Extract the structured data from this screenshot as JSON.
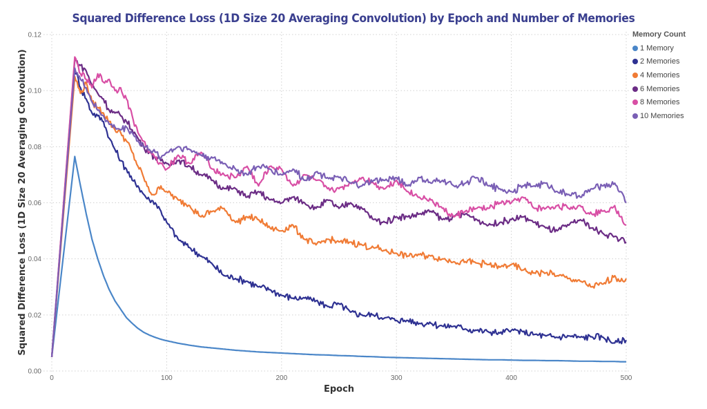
{
  "chart_data": {
    "type": "line",
    "title": "Squared Difference Loss (1D Size 20 Averaging Convolution) by Epoch and Number of Memories",
    "xlabel": "Epoch",
    "ylabel": "Squared Difference Loss (1D Size 20 Averaging Convolution)",
    "xlim": [
      0,
      500
    ],
    "ylim": [
      0,
      0.12
    ],
    "x_ticks": [
      "0",
      "100",
      "200",
      "300",
      "400",
      "500"
    ],
    "y_ticks": [
      "0.00",
      "0.02",
      "0.04",
      "0.06",
      "0.08",
      "0.10",
      "0.12"
    ],
    "grid": true,
    "legend": {
      "title": "Memory Count",
      "position": "right"
    },
    "x": [
      0,
      20,
      25,
      30,
      35,
      40,
      45,
      50,
      55,
      60,
      65,
      70,
      75,
      80,
      85,
      90,
      95,
      100,
      110,
      120,
      130,
      140,
      150,
      160,
      170,
      180,
      190,
      200,
      210,
      220,
      230,
      240,
      250,
      260,
      270,
      280,
      290,
      300,
      310,
      320,
      330,
      340,
      350,
      360,
      370,
      380,
      390,
      400,
      410,
      420,
      430,
      440,
      450,
      460,
      470,
      480,
      490,
      495,
      500
    ],
    "series": [
      {
        "name": "1 Memory",
        "color": "#4a86c8",
        "values": [
          0.005,
          0.0765,
          0.066,
          0.056,
          0.047,
          0.04,
          0.034,
          0.029,
          0.025,
          0.022,
          0.019,
          0.017,
          0.0152,
          0.0138,
          0.0128,
          0.012,
          0.0113,
          0.0108,
          0.0099,
          0.0092,
          0.0086,
          0.0082,
          0.0078,
          0.0074,
          0.0071,
          0.0068,
          0.0066,
          0.0064,
          0.0062,
          0.006,
          0.0058,
          0.0057,
          0.0055,
          0.0054,
          0.0052,
          0.0051,
          0.0049,
          0.0048,
          0.0047,
          0.0046,
          0.0045,
          0.0044,
          0.0043,
          0.0042,
          0.0041,
          0.004,
          0.004,
          0.0039,
          0.0038,
          0.0038,
          0.0037,
          0.0037,
          0.0036,
          0.0035,
          0.0035,
          0.0034,
          0.0034,
          0.0033,
          0.0033
        ]
      },
      {
        "name": "2 Memories",
        "color": "#2e3192",
        "values": [
          0.005,
          0.108,
          0.101,
          0.097,
          0.092,
          0.091,
          0.089,
          0.083,
          0.079,
          0.075,
          0.072,
          0.068,
          0.066,
          0.063,
          0.061,
          0.06,
          0.057,
          0.053,
          0.047,
          0.044,
          0.041,
          0.038,
          0.034,
          0.033,
          0.032,
          0.03,
          0.029,
          0.027,
          0.026,
          0.026,
          0.025,
          0.023,
          0.024,
          0.021,
          0.02,
          0.02,
          0.019,
          0.018,
          0.018,
          0.017,
          0.017,
          0.016,
          0.016,
          0.015,
          0.0145,
          0.014,
          0.0135,
          0.0145,
          0.014,
          0.013,
          0.0125,
          0.012,
          0.0125,
          0.012,
          0.0122,
          0.012,
          0.01,
          0.0105,
          0.011
        ]
      },
      {
        "name": "4 Memories",
        "color": "#f07b35",
        "values": [
          0.005,
          0.105,
          0.099,
          0.103,
          0.096,
          0.094,
          0.092,
          0.089,
          0.086,
          0.085,
          0.082,
          0.078,
          0.073,
          0.069,
          0.064,
          0.063,
          0.066,
          0.064,
          0.061,
          0.059,
          0.055,
          0.057,
          0.058,
          0.053,
          0.055,
          0.054,
          0.051,
          0.05,
          0.052,
          0.047,
          0.045,
          0.047,
          0.046,
          0.046,
          0.045,
          0.044,
          0.043,
          0.042,
          0.041,
          0.0415,
          0.041,
          0.04,
          0.039,
          0.039,
          0.0385,
          0.038,
          0.037,
          0.038,
          0.036,
          0.035,
          0.035,
          0.034,
          0.033,
          0.032,
          0.03,
          0.031,
          0.034,
          0.032,
          0.033
        ]
      },
      {
        "name": "6 Memories",
        "color": "#6b2c85",
        "values": [
          0.005,
          0.111,
          0.109,
          0.107,
          0.102,
          0.099,
          0.097,
          0.093,
          0.092,
          0.091,
          0.089,
          0.086,
          0.083,
          0.08,
          0.078,
          0.076,
          0.075,
          0.074,
          0.075,
          0.073,
          0.07,
          0.068,
          0.065,
          0.065,
          0.062,
          0.064,
          0.061,
          0.06,
          0.062,
          0.06,
          0.058,
          0.061,
          0.058,
          0.06,
          0.058,
          0.054,
          0.053,
          0.055,
          0.055,
          0.056,
          0.057,
          0.054,
          0.055,
          0.056,
          0.054,
          0.052,
          0.053,
          0.054,
          0.055,
          0.053,
          0.051,
          0.05,
          0.052,
          0.054,
          0.051,
          0.049,
          0.048,
          0.047,
          0.046
        ]
      },
      {
        "name": "8 Memories",
        "color": "#d84fa5",
        "values": [
          0.005,
          0.112,
          0.106,
          0.104,
          0.101,
          0.106,
          0.103,
          0.104,
          0.1,
          0.101,
          0.097,
          0.091,
          0.085,
          0.082,
          0.078,
          0.076,
          0.074,
          0.072,
          0.077,
          0.074,
          0.078,
          0.072,
          0.07,
          0.069,
          0.073,
          0.066,
          0.073,
          0.072,
          0.066,
          0.07,
          0.068,
          0.065,
          0.065,
          0.067,
          0.069,
          0.067,
          0.065,
          0.068,
          0.064,
          0.062,
          0.061,
          0.058,
          0.055,
          0.057,
          0.058,
          0.058,
          0.06,
          0.06,
          0.062,
          0.058,
          0.058,
          0.059,
          0.058,
          0.059,
          0.056,
          0.057,
          0.059,
          0.055,
          0.052
        ]
      },
      {
        "name": "10 Memories",
        "color": "#7a5fb5",
        "values": [
          0.005,
          0.108,
          0.104,
          0.101,
          0.096,
          0.093,
          0.091,
          0.088,
          0.087,
          0.086,
          0.087,
          0.085,
          0.082,
          0.08,
          0.079,
          0.078,
          0.076,
          0.078,
          0.08,
          0.079,
          0.077,
          0.076,
          0.074,
          0.072,
          0.07,
          0.073,
          0.072,
          0.07,
          0.072,
          0.068,
          0.071,
          0.069,
          0.069,
          0.067,
          0.066,
          0.068,
          0.068,
          0.069,
          0.066,
          0.069,
          0.067,
          0.068,
          0.066,
          0.067,
          0.069,
          0.066,
          0.065,
          0.064,
          0.066,
          0.066,
          0.067,
          0.064,
          0.063,
          0.062,
          0.065,
          0.066,
          0.067,
          0.064,
          0.06
        ]
      }
    ]
  }
}
